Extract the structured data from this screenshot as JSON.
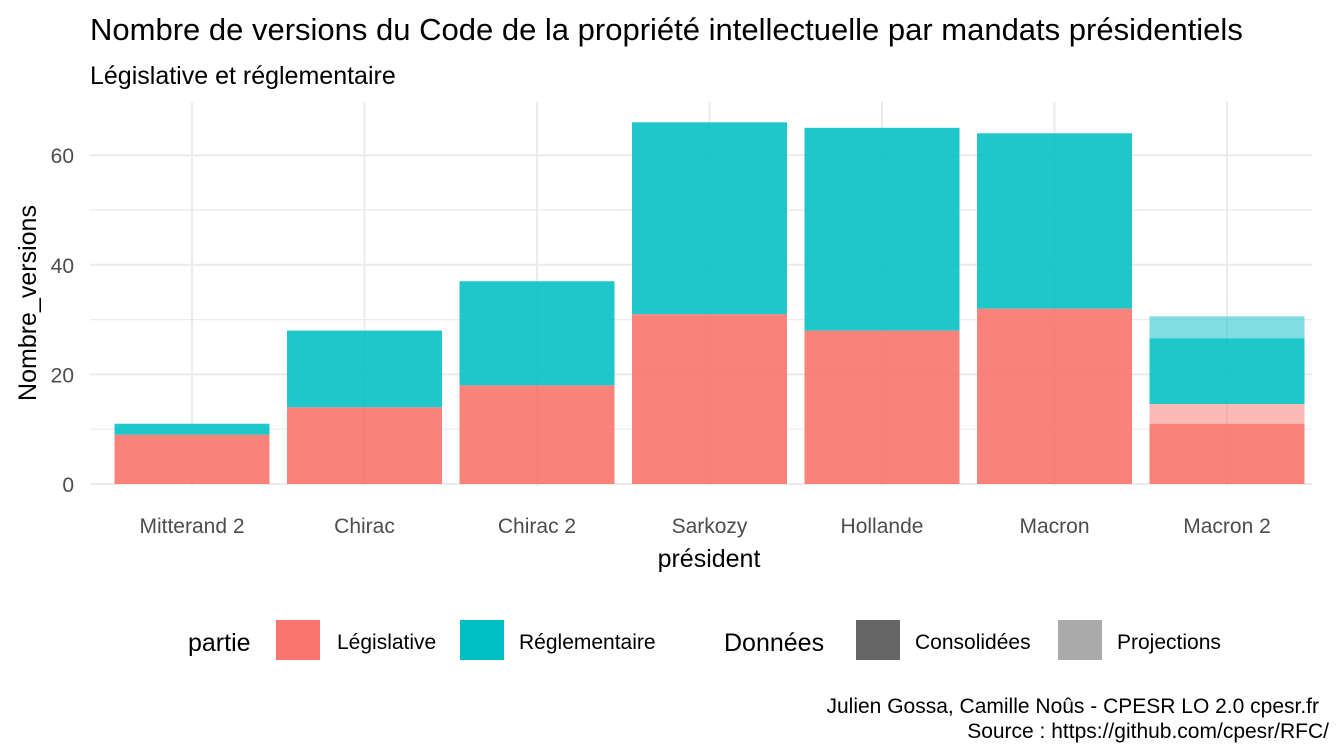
{
  "chart_data": {
    "type": "bar",
    "stacked": true,
    "title": "Nombre de versions du Code de la propriété intellectuelle par mandats présidentiels",
    "subtitle": "Législative et réglementaire",
    "xlabel": "président",
    "ylabel": "Nombre_versions",
    "categories": [
      "Mitterand 2",
      "Chirac",
      "Chirac 2",
      "Sarkozy",
      "Hollande",
      "Macron",
      "Macron 2"
    ],
    "ylim": [
      0,
      69
    ],
    "yticks": [
      0,
      20,
      40,
      60
    ],
    "grid": true,
    "series": [
      {
        "name": "Législative",
        "color": "#F8766D",
        "consolidees": [
          9,
          14,
          18,
          31,
          28,
          32,
          11
        ],
        "projections": [
          0,
          0,
          0,
          0,
          0,
          0,
          3.6
        ]
      },
      {
        "name": "Réglementaire",
        "color": "#00BFC4",
        "consolidees": [
          2,
          14,
          19,
          35,
          37,
          32,
          12
        ],
        "projections": [
          0,
          0,
          0,
          0,
          0,
          0,
          4
        ]
      }
    ],
    "legend": {
      "position": "bottom",
      "fill_title": "partie",
      "alpha_title": "Données",
      "alpha_items": [
        {
          "label": "Consolidées",
          "color": "#666666"
        },
        {
          "label": "Projections",
          "color": "#ABABAB"
        }
      ]
    },
    "caption": [
      "Julien Gossa, Camille Noûs - CPESR LO 2.0 cpesr.fr",
      "Source : https://github.com/cpesr/RFC/"
    ]
  }
}
